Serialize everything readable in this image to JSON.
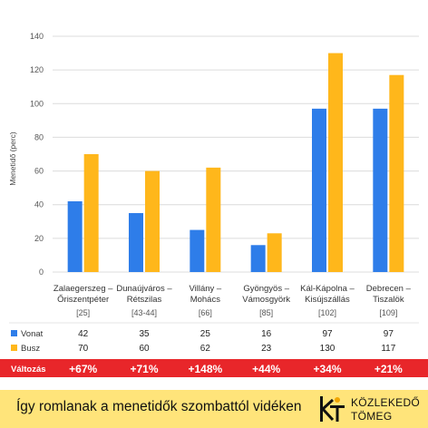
{
  "chart_data": {
    "type": "bar",
    "ylabel": "Menetidő (perc)",
    "ylim": [
      0,
      140
    ],
    "yticks": [
      0,
      20,
      40,
      60,
      80,
      100,
      120,
      140
    ],
    "categories": [
      {
        "line1": "Zalaegerszeg –",
        "line2": "Őriszentpéter",
        "code": "[25]"
      },
      {
        "line1": "Dunaújváros –",
        "line2": "Rétszilas",
        "code": "[43-44]"
      },
      {
        "line1": "Villány –",
        "line2": "Mohács",
        "code": "[66]"
      },
      {
        "line1": "Gyöngyös –",
        "line2": "Vámosgyörk",
        "code": "[85]"
      },
      {
        "line1": "Kál-Kápolna –",
        "line2": "Kisújszállás",
        "code": "[102]"
      },
      {
        "line1": "Debrecen –",
        "line2": "Tiszalök",
        "code": "[109]"
      }
    ],
    "series": [
      {
        "name": "Vonat",
        "color": "#2e7de9",
        "values": [
          42,
          35,
          25,
          16,
          97,
          97
        ]
      },
      {
        "name": "Busz",
        "color": "#ffb71b",
        "values": [
          70,
          60,
          62,
          23,
          130,
          117
        ]
      }
    ],
    "change": {
      "label": "Változás",
      "values": [
        "+67%",
        "+71%",
        "+148%",
        "+44%",
        "+34%",
        "+21%"
      ],
      "color": "#e8262a"
    }
  },
  "footer": {
    "title": "Így romlanak a menetidők szombattól vidéken",
    "logo_line1": "KÖZLEKEDŐ",
    "logo_line2": "TÖMEG",
    "logo_icon": "kt-logo-icon",
    "background": "#ffe47a"
  }
}
